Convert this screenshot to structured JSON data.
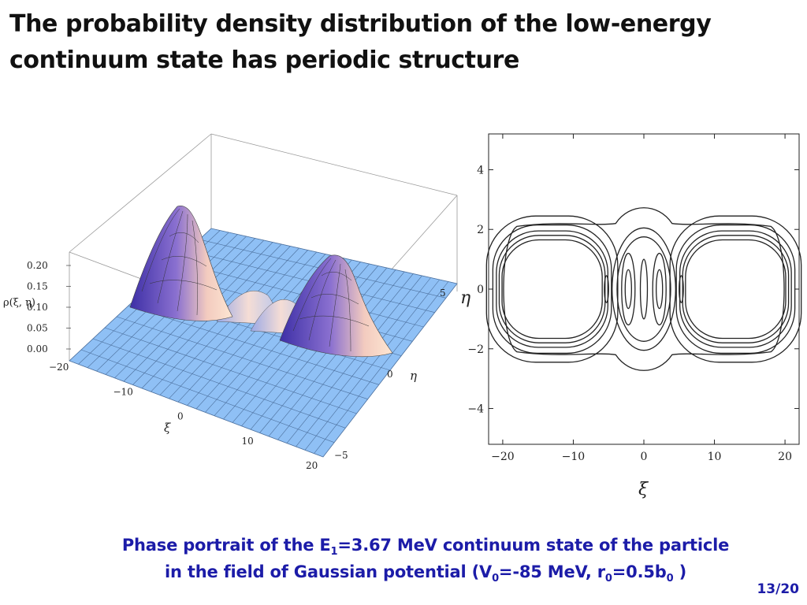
{
  "title": {
    "line1": "The probability density distribution of the low-energy",
    "line2": "continuum state has periodic structure"
  },
  "surface_plot": {
    "z_label": "ρ(ξ, η)",
    "x_label": "ξ",
    "y_label": "η",
    "z_ticks": [
      "0.20",
      "0.15",
      "0.10",
      "0.05",
      "0.00"
    ],
    "x_ticks": [
      "−20",
      "−10",
      "0",
      "10",
      "20"
    ],
    "y_ticks": [
      "5",
      "0",
      "−5"
    ],
    "surface_color": "#8fc0f5"
  },
  "chart_data": {
    "type": "contour",
    "xlabel": "ξ",
    "ylabel": "η",
    "xlim": [
      -22,
      22
    ],
    "ylim": [
      -5.2,
      5.2
    ],
    "x_ticks": [
      "−20",
      "−10",
      "0",
      "10",
      "20"
    ],
    "y_ticks": [
      "4",
      "2",
      "0",
      "−2",
      "−4"
    ],
    "x_tick_values": [
      -20,
      -10,
      0,
      10,
      20
    ],
    "y_tick_values": [
      4,
      2,
      0,
      -2,
      -4
    ],
    "outer_contour_halfwidth": 20.5,
    "left_lobe_rings": [
      {
        "cx": -13,
        "rx": 9.3,
        "ry": 2.45
      },
      {
        "cx": -13,
        "rx": 8.4,
        "ry": 2.15
      },
      {
        "cx": -13,
        "rx": 7.9,
        "ry": 1.95
      },
      {
        "cx": -13,
        "rx": 7.5,
        "ry": 1.8
      },
      {
        "cx": -13,
        "rx": 7.1,
        "ry": 1.65
      }
    ],
    "right_lobe_rings": [
      {
        "cx": 13,
        "rx": 9.3,
        "ry": 2.45
      },
      {
        "cx": 13,
        "rx": 8.4,
        "ry": 2.15
      },
      {
        "cx": 13,
        "rx": 7.9,
        "ry": 1.95
      },
      {
        "cx": 13,
        "rx": 7.5,
        "ry": 1.8
      },
      {
        "cx": 13,
        "rx": 7.1,
        "ry": 1.65
      }
    ],
    "center_rings": [
      {
        "cx": 0,
        "rx": 4.5,
        "ry": 2.05
      },
      {
        "cx": 0,
        "rx": 3.8,
        "ry": 1.75
      },
      {
        "cx": -2.2,
        "rx": 0.95,
        "ry": 1.2
      },
      {
        "cx": 2.2,
        "rx": 0.95,
        "ry": 1.2
      },
      {
        "cx": -2.2,
        "rx": 0.45,
        "ry": 0.65
      },
      {
        "cx": 2.2,
        "rx": 0.45,
        "ry": 0.65
      },
      {
        "cx": 0,
        "rx": 0.5,
        "ry": 1.0
      },
      {
        "cx": -5.3,
        "rx": 0.3,
        "ry": 0.45
      },
      {
        "cx": 5.3,
        "rx": 0.3,
        "ry": 0.45
      }
    ]
  },
  "caption": {
    "l1_a": "Phase portrait of the E",
    "l1_sub": "1",
    "l1_b": "=3.67 MeV continuum state of the particle",
    "l2_a": "in the field of Gaussian potential (V",
    "l2_sub1": "0",
    "l2_b": "=-85 MeV, r",
    "l2_sub2": "0",
    "l2_c": "=0.5b",
    "l2_sub3": "0",
    "l2_d": " )"
  },
  "page_number": "13/20",
  "colors": {
    "caption": "#1c1ca8",
    "surface": "#8fc0f5",
    "peak_high": "#5a3fb8",
    "peak_low": "#f5c8b8"
  }
}
